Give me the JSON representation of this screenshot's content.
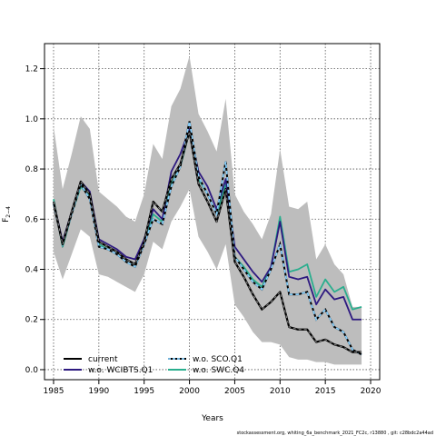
{
  "chart_data": {
    "type": "line",
    "xlabel": "Years",
    "ylabel_main": "F",
    "ylabel_sub": "2−4",
    "xlim": [
      1984,
      2021
    ],
    "ylim": [
      -0.04,
      1.3
    ],
    "xticks": [
      1985,
      1990,
      1995,
      2000,
      2005,
      2010,
      2015,
      2020
    ],
    "yticks": [
      0.0,
      0.2,
      0.4,
      0.6,
      0.8,
      1.0,
      1.2
    ],
    "grid": true,
    "legend_position": "bottom-left",
    "footer": "stockassessment.org, whiting_6a_benchmark_2021_FC2c, r13880 , git: c28bdc2a44ad",
    "x": [
      1985,
      1986,
      1987,
      1988,
      1989,
      1990,
      1991,
      1992,
      1993,
      1994,
      1995,
      1996,
      1997,
      1998,
      1999,
      2000,
      2001,
      2002,
      2003,
      2004,
      2005,
      2006,
      2007,
      2008,
      2009,
      2010,
      2011,
      2012,
      2013,
      2014,
      2015,
      2016,
      2017,
      2018,
      2019
    ],
    "band": {
      "upper": [
        0.97,
        0.72,
        0.86,
        1.01,
        0.96,
        0.71,
        0.68,
        0.65,
        0.61,
        0.59,
        0.7,
        0.9,
        0.84,
        1.05,
        1.12,
        1.25,
        1.02,
        0.95,
        0.87,
        1.08,
        0.7,
        0.63,
        0.58,
        0.52,
        0.62,
        0.88,
        0.65,
        0.64,
        0.67,
        0.44,
        0.5,
        0.42,
        0.38,
        0.25,
        0.25
      ],
      "lower": [
        0.47,
        0.36,
        0.46,
        0.56,
        0.53,
        0.38,
        0.37,
        0.35,
        0.33,
        0.31,
        0.38,
        0.51,
        0.48,
        0.59,
        0.65,
        0.72,
        0.53,
        0.47,
        0.4,
        0.5,
        0.26,
        0.21,
        0.15,
        0.11,
        0.11,
        0.1,
        0.05,
        0.04,
        0.04,
        0.03,
        0.03,
        0.02,
        0.02,
        0.02,
        0.02
      ]
    },
    "series": [
      {
        "name": "current",
        "color": "#000000",
        "dash": "solid",
        "values": [
          0.67,
          0.5,
          0.63,
          0.75,
          0.7,
          0.51,
          0.49,
          0.47,
          0.44,
          0.42,
          0.51,
          0.67,
          0.63,
          0.76,
          0.82,
          0.95,
          0.74,
          0.67,
          0.59,
          0.72,
          0.43,
          0.37,
          0.3,
          0.24,
          0.27,
          0.31,
          0.17,
          0.16,
          0.16,
          0.11,
          0.12,
          0.1,
          0.09,
          0.07,
          0.07
        ]
      },
      {
        "name": "w.o. WCIBTS.Q1",
        "color": "#2E1A80",
        "dash": "solid",
        "values": [
          0.67,
          0.51,
          0.63,
          0.75,
          0.71,
          0.52,
          0.5,
          0.48,
          0.45,
          0.44,
          0.52,
          0.64,
          0.6,
          0.79,
          0.86,
          0.96,
          0.79,
          0.73,
          0.64,
          0.76,
          0.49,
          0.44,
          0.39,
          0.35,
          0.41,
          0.59,
          0.37,
          0.36,
          0.37,
          0.26,
          0.32,
          0.28,
          0.29,
          0.2,
          0.2
        ]
      },
      {
        "name": "w.o. SCO.Q1",
        "color": "#87CEFA",
        "dash": "dashed",
        "values": [
          0.66,
          0.5,
          0.62,
          0.74,
          0.68,
          0.49,
          0.48,
          0.46,
          0.43,
          0.41,
          0.5,
          0.6,
          0.58,
          0.73,
          0.81,
          0.99,
          0.77,
          0.7,
          0.62,
          0.83,
          0.45,
          0.4,
          0.35,
          0.32,
          0.4,
          0.5,
          0.3,
          0.3,
          0.31,
          0.2,
          0.24,
          0.17,
          0.15,
          0.08,
          0.06
        ]
      },
      {
        "name": "w.o. SWC.Q4",
        "color": "#2AAE8E",
        "dash": "solid",
        "values": [
          0.68,
          0.49,
          0.62,
          0.73,
          0.69,
          0.5,
          0.48,
          0.46,
          0.43,
          0.41,
          0.51,
          0.62,
          0.59,
          0.74,
          0.81,
          0.95,
          0.76,
          0.7,
          0.62,
          0.74,
          0.45,
          0.41,
          0.36,
          0.33,
          0.41,
          0.61,
          0.39,
          0.4,
          0.42,
          0.29,
          0.36,
          0.31,
          0.33,
          0.24,
          0.25
        ]
      }
    ]
  }
}
